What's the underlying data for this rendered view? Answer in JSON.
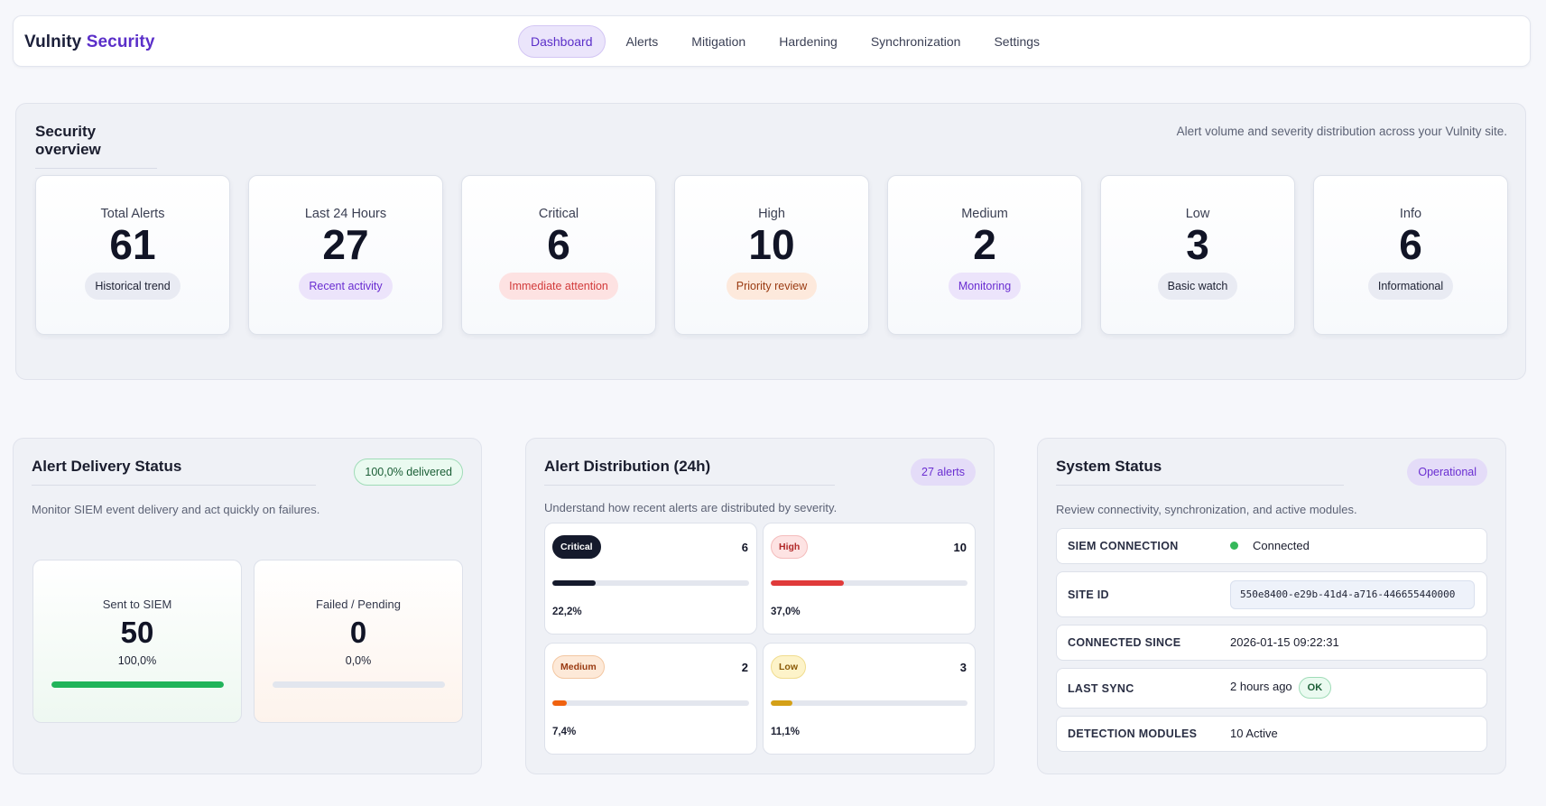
{
  "brand": {
    "part1": "Vulnity",
    "part2": "Security"
  },
  "nav": {
    "items": [
      {
        "label": "Dashboard",
        "active": true
      },
      {
        "label": "Alerts"
      },
      {
        "label": "Mitigation"
      },
      {
        "label": "Hardening"
      },
      {
        "label": "Synchronization"
      },
      {
        "label": "Settings"
      }
    ]
  },
  "overview": {
    "title": "Security overview",
    "description": "Alert volume and severity distribution across your Vulnity site.",
    "stats": [
      {
        "label": "Total Alerts",
        "value": "61",
        "pill": "Historical trend"
      },
      {
        "label": "Last 24 Hours",
        "value": "27",
        "pill": "Recent activity"
      },
      {
        "label": "Critical",
        "value": "6",
        "pill": "Immediate attention"
      },
      {
        "label": "High",
        "value": "10",
        "pill": "Priority review"
      },
      {
        "label": "Medium",
        "value": "2",
        "pill": "Monitoring"
      },
      {
        "label": "Low",
        "value": "3",
        "pill": "Basic watch"
      },
      {
        "label": "Info",
        "value": "6",
        "pill": "Informational"
      }
    ]
  },
  "delivery": {
    "title": "Alert Delivery Status",
    "badge": "100,0% delivered",
    "description": "Monitor SIEM event delivery and act quickly on failures.",
    "sent": {
      "label": "Sent to SIEM",
      "value": "50",
      "percent": "100,0%",
      "fill": 1.0
    },
    "failed": {
      "label": "Failed / Pending",
      "value": "0",
      "percent": "0,0%",
      "fill": 0.0
    }
  },
  "distribution": {
    "title": "Alert Distribution (24h)",
    "badge": "27 alerts",
    "description": "Understand how recent alerts are distributed by severity.",
    "items": [
      {
        "label": "Critical",
        "count": "6",
        "percent": "22,2%",
        "fill": 0.222,
        "color": "#151a2c"
      },
      {
        "label": "High",
        "count": "10",
        "percent": "37,0%",
        "fill": 0.37,
        "color": "#e03a3a"
      },
      {
        "label": "Medium",
        "count": "2",
        "percent": "7,4%",
        "fill": 0.074,
        "color": "#f0620f"
      },
      {
        "label": "Low",
        "count": "3",
        "percent": "11,1%",
        "fill": 0.111,
        "color": "#d4a017"
      }
    ]
  },
  "system": {
    "title": "System Status",
    "badge": "Operational",
    "description": "Review connectivity, synchronization, and active modules.",
    "rows": [
      {
        "key": "SIEM CONNECTION",
        "value": "Connected"
      },
      {
        "key": "SITE ID",
        "value": "550e8400-e29b-41d4-a716-446655440000"
      },
      {
        "key": "CONNECTED SINCE",
        "value": "2026-01-15 09:22:31"
      },
      {
        "key": "LAST SYNC",
        "value": "2 hours ago",
        "badge": "OK"
      },
      {
        "key": "DETECTION MODULES",
        "value": "10 Active"
      }
    ]
  },
  "colors": {
    "accent": "#5b2fc9",
    "success": "#22b45a",
    "danger": "#e03a3a"
  }
}
